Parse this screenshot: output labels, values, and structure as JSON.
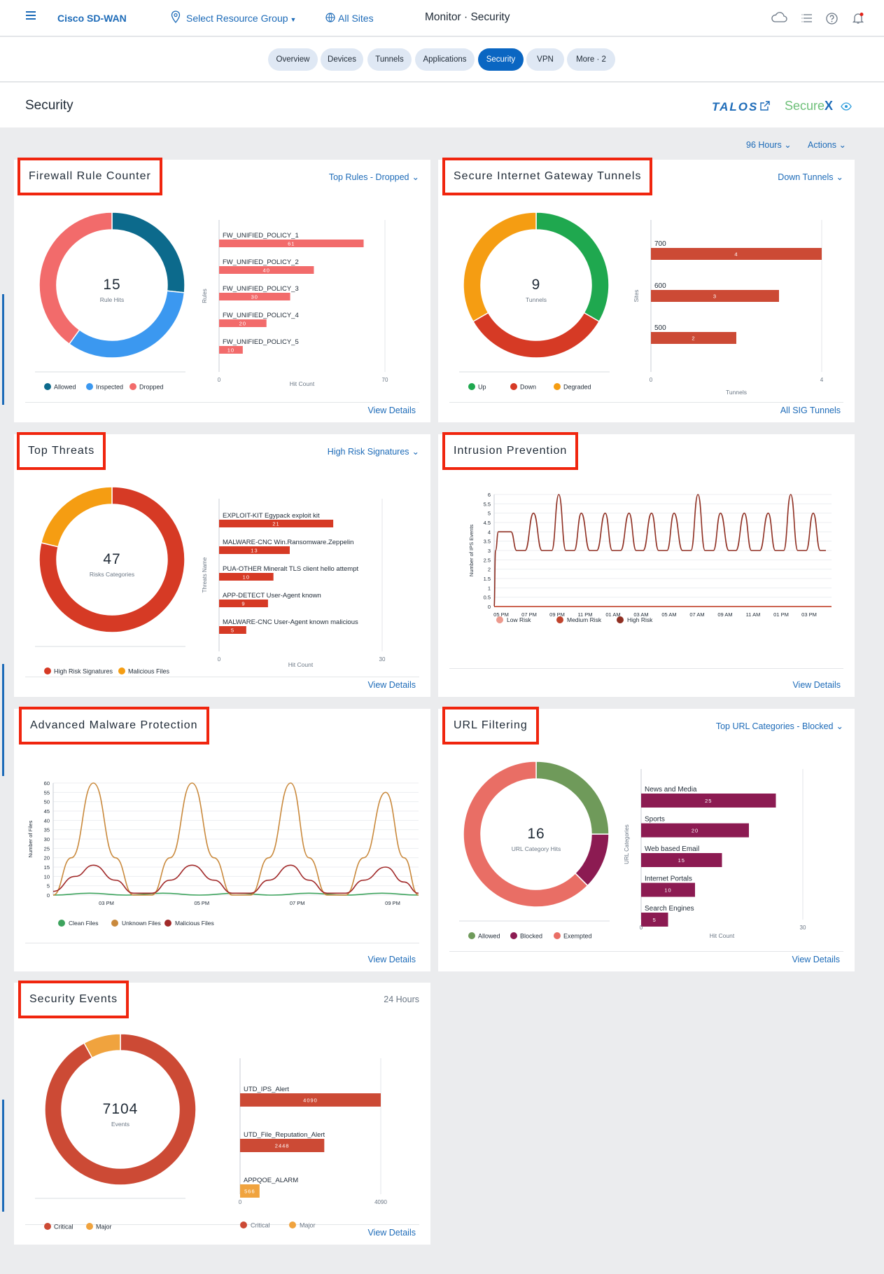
{
  "header": {
    "brand": "Cisco SD-WAN",
    "resource_group": "Select Resource Group",
    "sites": "All Sites",
    "breadcrumb": "Monitor · Security",
    "icons": [
      "menu-icon",
      "location-pin-icon",
      "globe-icon",
      "cloud-icon",
      "task-list-icon",
      "help-icon",
      "notification-bell-icon"
    ],
    "alert_dot_color": "#e2231a"
  },
  "tabs": [
    {
      "label": "Overview"
    },
    {
      "label": "Devices"
    },
    {
      "label": "Tunnels"
    },
    {
      "label": "Applications"
    },
    {
      "label": "Security",
      "active": true
    },
    {
      "label": "VPN"
    },
    {
      "label": "More · 2"
    }
  ],
  "page": {
    "title": "Security",
    "talos": "TALOS",
    "securex": "Secure",
    "securex_x": "X",
    "time_range": "96 Hours",
    "actions": "Actions"
  },
  "colors": {
    "accent": "#1d6bb8",
    "highlight_box": "#f0250e"
  },
  "chart_data": [
    {
      "id": "firewall",
      "type": "bar",
      "title": "Firewall Rule Counter",
      "dropdown": "Top Rules - Dropped",
      "donut": {
        "center_value": "15",
        "center_label": "Rule Hits",
        "slices": [
          {
            "name": "Allowed",
            "value": 4,
            "color": "#0c6a8c"
          },
          {
            "name": "Inspected",
            "value": 5,
            "color": "#3b98f0"
          },
          {
            "name": "Dropped",
            "value": 6,
            "color": "#f26b6b"
          }
        ]
      },
      "bar_color": "#f26b6b",
      "categories": [
        "FW_UNIFIED_POLICY_1",
        "FW_UNIFIED_POLICY_2",
        "FW_UNIFIED_POLICY_3",
        "FW_UNIFIED_POLICY_4",
        "FW_UNIFIED_POLICY_5"
      ],
      "values": [
        61,
        40,
        30,
        20,
        10
      ],
      "xlim": [
        0,
        70
      ],
      "ticks": [
        "0",
        "70"
      ],
      "xlabel": "Hit Count",
      "ylabel": "Rules",
      "view_link": "View Details"
    },
    {
      "id": "sig",
      "type": "bar",
      "title": "Secure Internet Gateway Tunnels",
      "dropdown": "Down Tunnels",
      "donut": {
        "center_value": "9",
        "center_label": "Tunnels",
        "slices": [
          {
            "name": "Up",
            "value": 3,
            "color": "#1fa84f"
          },
          {
            "name": "Down",
            "value": 3,
            "color": "#d63a25"
          },
          {
            "name": "Degraded",
            "value": 3,
            "color": "#f59d12"
          }
        ]
      },
      "bar_color": "#cc4a35",
      "categories": [
        "700",
        "600",
        "500"
      ],
      "values": [
        4,
        3,
        2
      ],
      "xlim": [
        0,
        4
      ],
      "ticks": [
        "0",
        "4"
      ],
      "xlabel": "Tunnels",
      "ylabel": "Sites",
      "view_link": "All SIG Tunnels"
    },
    {
      "id": "threats",
      "type": "bar",
      "title": "Top Threats",
      "dropdown": "High Risk Signatures",
      "donut": {
        "center_value": "47",
        "center_label": "Risks Categories",
        "slices": [
          {
            "name": "High Risk Signatures",
            "value": 37,
            "color": "#d63a25"
          },
          {
            "name": "Malicious Files",
            "value": 10,
            "color": "#f59d12"
          }
        ]
      },
      "bar_color": "#d63a25",
      "categories": [
        "EXPLOIT-KIT Egypack exploit kit",
        "MALWARE-CNC Win.Ransomware.Zeppelin",
        "PUA-OTHER Mineralt TLS client hello attempt",
        "APP-DETECT User-Agent known",
        "MALWARE-CNC User-Agent known malicious"
      ],
      "values": [
        21,
        13,
        10,
        9,
        5
      ],
      "xlim": [
        0,
        30
      ],
      "ticks": [
        "0",
        "30"
      ],
      "xlabel": "Hit Count",
      "ylabel": "Threats Name",
      "view_link": "View Details"
    },
    {
      "id": "ips",
      "type": "line",
      "title": "Intrusion Prevention",
      "ylabel": "Number of IPS Events",
      "ylim": [
        0,
        6
      ],
      "yticks": [
        "0",
        "0.5",
        "1",
        "1.5",
        "2",
        "2.5",
        "3",
        "3.5",
        "4",
        "4.5",
        "5",
        "5.5",
        "6"
      ],
      "xticks": [
        "05 PM",
        "07 PM",
        "09 PM",
        "11 PM",
        "01 AM",
        "03 AM",
        "05 AM",
        "07 AM",
        "09 AM",
        "11 AM",
        "01 PM",
        "03 PM"
      ],
      "series": [
        {
          "name": "Low Risk",
          "color": "#ec9a8e",
          "points": [
            [
              0,
              0
            ],
            [
              24,
              0
            ]
          ]
        },
        {
          "name": "Medium Risk",
          "color": "#c0442d",
          "points": [
            [
              0,
              0
            ],
            [
              24,
              0
            ]
          ]
        },
        {
          "name": "High Risk",
          "color": "#8f2f22",
          "points": [
            [
              0,
              0
            ],
            [
              0.1,
              3
            ],
            [
              0.3,
              4
            ],
            [
              1.2,
              4
            ],
            [
              1.6,
              3
            ],
            [
              2.2,
              3
            ],
            [
              2.8,
              5
            ],
            [
              3.4,
              3
            ],
            [
              4.1,
              3
            ],
            [
              4.6,
              6
            ],
            [
              5.1,
              3
            ],
            [
              5.7,
              3
            ],
            [
              6.2,
              5
            ],
            [
              6.8,
              3
            ],
            [
              7.3,
              3
            ],
            [
              7.9,
              5
            ],
            [
              8.4,
              3
            ],
            [
              9,
              3
            ],
            [
              9.6,
              5
            ],
            [
              10.1,
              3
            ],
            [
              10.6,
              3
            ],
            [
              11.2,
              5
            ],
            [
              11.7,
              3
            ],
            [
              12.3,
              3
            ],
            [
              12.8,
              5
            ],
            [
              13.4,
              3
            ],
            [
              14,
              3
            ],
            [
              14.5,
              6
            ],
            [
              15,
              3
            ],
            [
              15.6,
              3
            ],
            [
              16.1,
              5
            ],
            [
              16.7,
              3
            ],
            [
              17.2,
              3
            ],
            [
              17.8,
              5
            ],
            [
              18.3,
              3
            ],
            [
              18.9,
              3
            ],
            [
              19.5,
              5
            ],
            [
              20,
              3
            ],
            [
              20.6,
              3
            ],
            [
              21.1,
              6
            ],
            [
              21.6,
              3
            ],
            [
              22.2,
              3
            ],
            [
              22.7,
              5
            ],
            [
              23.2,
              3
            ],
            [
              23.6,
              3
            ]
          ]
        }
      ],
      "view_link": "View Details"
    },
    {
      "id": "amp",
      "type": "line",
      "title": "Advanced Malware Protection",
      "ylabel": "Number of Files",
      "ylim": [
        0,
        60
      ],
      "yticks": [
        "0",
        "5",
        "10",
        "15",
        "20",
        "25",
        "30",
        "35",
        "40",
        "45",
        "50",
        "55",
        "60"
      ],
      "xticks": [
        "03 PM",
        "05 PM",
        "07 PM",
        "09 PM"
      ],
      "series": [
        {
          "name": "Clean Files",
          "color": "#3da35d",
          "points": [
            [
              0,
              0
            ],
            [
              1,
              1
            ],
            [
              2,
              0
            ],
            [
              3,
              1
            ],
            [
              4,
              0
            ],
            [
              5,
              1
            ],
            [
              6,
              0
            ],
            [
              7,
              1
            ],
            [
              8,
              0
            ],
            [
              9,
              1
            ],
            [
              10,
              0
            ]
          ]
        },
        {
          "name": "Unknown Files",
          "color": "#c9893c",
          "points": [
            [
              0,
              0
            ],
            [
              0.5,
              20
            ],
            [
              1.1,
              60
            ],
            [
              1.7,
              20
            ],
            [
              2.2,
              0
            ],
            [
              2.7,
              0
            ],
            [
              3.2,
              20
            ],
            [
              3.8,
              60
            ],
            [
              4.4,
              20
            ],
            [
              4.9,
              0
            ],
            [
              5.4,
              0
            ],
            [
              5.9,
              20
            ],
            [
              6.5,
              60
            ],
            [
              7,
              20
            ],
            [
              7.5,
              0
            ],
            [
              8,
              0
            ],
            [
              8.5,
              20
            ],
            [
              9.1,
              55
            ],
            [
              9.6,
              20
            ],
            [
              10,
              0
            ]
          ]
        },
        {
          "name": "Malicious Files",
          "color": "#a12a2a",
          "points": [
            [
              0,
              2
            ],
            [
              0.6,
              10
            ],
            [
              1.1,
              16
            ],
            [
              1.7,
              8
            ],
            [
              2.2,
              1
            ],
            [
              2.7,
              1
            ],
            [
              3.2,
              8
            ],
            [
              3.8,
              16
            ],
            [
              4.4,
              8
            ],
            [
              4.9,
              1
            ],
            [
              5.4,
              1
            ],
            [
              5.9,
              8
            ],
            [
              6.5,
              16
            ],
            [
              7,
              8
            ],
            [
              7.5,
              1
            ],
            [
              8,
              1
            ],
            [
              8.5,
              8
            ],
            [
              9.1,
              15
            ],
            [
              9.6,
              7
            ],
            [
              10,
              1
            ]
          ]
        }
      ],
      "view_link": "View Details"
    },
    {
      "id": "url",
      "type": "bar",
      "title": "URL Filtering",
      "dropdown": "Top URL Categories - Blocked",
      "donut": {
        "center_value": "16",
        "center_label": "URL Category Hits",
        "slices": [
          {
            "name": "Allowed",
            "value": 4,
            "color": "#6f9a5a"
          },
          {
            "name": "Blocked",
            "value": 2,
            "color": "#8c1b52"
          },
          {
            "name": "Exempted",
            "value": 10,
            "color": "#e96e65"
          }
        ]
      },
      "bar_color": "#8c1b52",
      "categories": [
        "News and Media",
        "Sports",
        "Web based Email",
        "Internet Portals",
        "Search Engines"
      ],
      "values": [
        25,
        20,
        15,
        10,
        5
      ],
      "xlim": [
        0,
        30
      ],
      "ticks": [
        "0",
        "30"
      ],
      "xlabel": "Hit Count",
      "ylabel": "URL Categories",
      "view_link": "View Details"
    },
    {
      "id": "events",
      "type": "bar",
      "title": "Security Events",
      "range": "24 Hours",
      "donut": {
        "center_value": "7104",
        "center_label": "Events",
        "slices": [
          {
            "name": "Critical",
            "value": 6538,
            "color": "#cc4a35"
          },
          {
            "name": "Major",
            "value": 566,
            "color": "#f0a33e"
          }
        ]
      },
      "bar_colors": [
        "#cc4a35",
        "#cc4a35",
        "#f0a33e"
      ],
      "categories": [
        "UTD_IPS_Alert",
        "UTD_File_Reputation_Alert",
        "APPQOE_ALARM"
      ],
      "values": [
        4090,
        2448,
        566
      ],
      "xlim": [
        0,
        4090
      ],
      "ticks": [
        "0",
        "4090"
      ],
      "legend2": [
        {
          "name": "Critical",
          "color": "#cc4a35"
        },
        {
          "name": "Major",
          "color": "#f0a33e"
        }
      ],
      "view_link": "View Details"
    }
  ]
}
